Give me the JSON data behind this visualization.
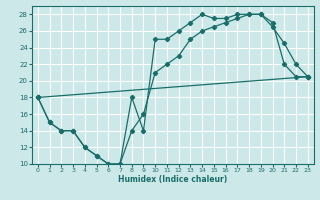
{
  "xlabel": "Humidex (Indice chaleur)",
  "bg_color": "#cce8e8",
  "grid_color": "#ffffff",
  "line_color": "#1a6e6a",
  "xlim": [
    -0.5,
    23.5
  ],
  "ylim": [
    10,
    29
  ],
  "xticks": [
    0,
    1,
    2,
    3,
    4,
    5,
    6,
    7,
    8,
    9,
    10,
    11,
    12,
    13,
    14,
    15,
    16,
    17,
    18,
    19,
    20,
    21,
    22,
    23
  ],
  "yticks": [
    10,
    12,
    14,
    16,
    18,
    20,
    22,
    24,
    26,
    28
  ],
  "line1_x": [
    0,
    1,
    2,
    3,
    4,
    5,
    6,
    7,
    8,
    9,
    10,
    11,
    12,
    13,
    14,
    15,
    16,
    17,
    18,
    19,
    20,
    21,
    22,
    23
  ],
  "line1_y": [
    18,
    15,
    14,
    14,
    12,
    11,
    10,
    10,
    18,
    14,
    25,
    25,
    26,
    27,
    28,
    27.5,
    27.5,
    28,
    28,
    28,
    27,
    22,
    20.5,
    20.5
  ],
  "line2_x": [
    0,
    1,
    2,
    3,
    4,
    5,
    6,
    7,
    8,
    9,
    10,
    11,
    12,
    13,
    14,
    15,
    16,
    17,
    18,
    19,
    20,
    21,
    22,
    23
  ],
  "line2_y": [
    18,
    15,
    14,
    14,
    12,
    11,
    10,
    10,
    14,
    16,
    21,
    22,
    23,
    25,
    26,
    26.5,
    27,
    27.5,
    28,
    28,
    26.5,
    24.5,
    22,
    20.5
  ],
  "line3_x": [
    0,
    23
  ],
  "line3_y": [
    18,
    20.5
  ]
}
